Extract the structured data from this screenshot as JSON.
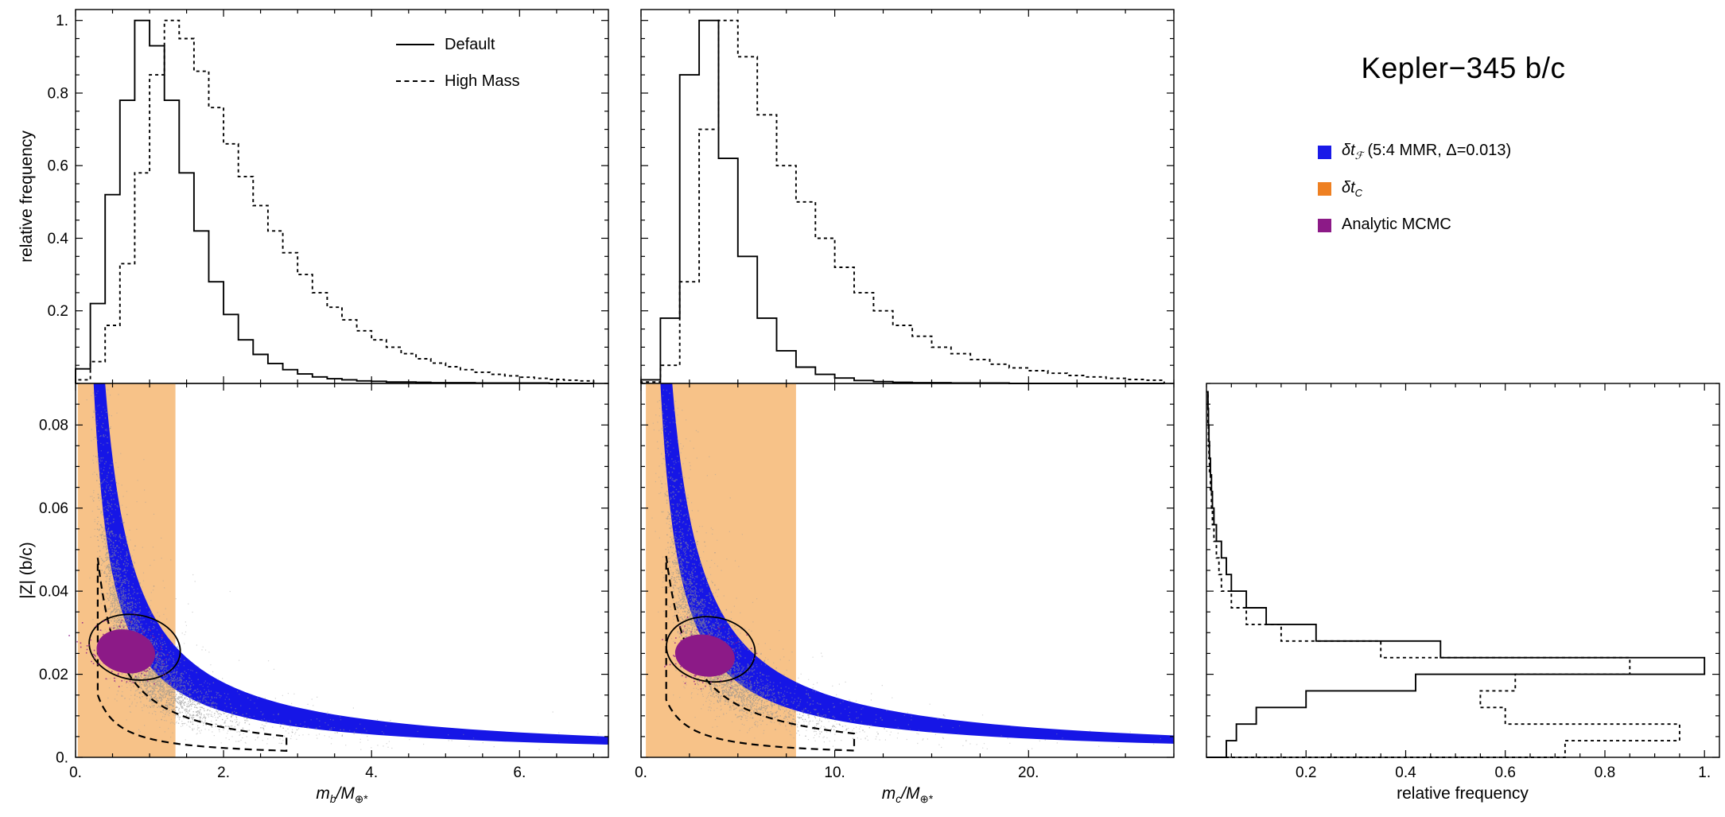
{
  "title": "Kepler−345 b/c",
  "colors": {
    "blue": "#1616E6",
    "orange_band": "#F7C288",
    "purple": "#8C1A87",
    "gray": "#999999"
  },
  "legend": {
    "items": [
      {
        "prefix": "δt",
        "sub": "ℱ",
        "rest": " (5:4 MMR, Δ=0.013)",
        "color": "#1A1AE8",
        "font_style": "italic"
      },
      {
        "prefix": "δt",
        "sub": "C",
        "rest": "",
        "color": "#EE8022",
        "font_style": "italic"
      },
      {
        "prefix": "Analytic MCMC",
        "sub": "",
        "rest": "",
        "color": "#8C1A87",
        "font_style": "normal"
      }
    ]
  },
  "hist_legend": {
    "solid": "Default",
    "dashed": "High Mass"
  },
  "axis_labels": {
    "relative_frequency": "relative frequency",
    "z_amplitude": "|Z| (b/c)",
    "mb": {
      "base": "m",
      "base_sub": "b",
      "denom": "/M",
      "denom_sub": "⊕*"
    },
    "mc": {
      "base": "m",
      "base_sub": "c",
      "denom": "/M",
      "denom_sub": "⊕*"
    }
  },
  "chart_data": [
    {
      "id": "mb_hist",
      "type": "histogram-step",
      "xlim": [
        0,
        7.2
      ],
      "ylim": [
        0,
        1.03
      ],
      "bin_start": 0,
      "bin_width": 0.2,
      "xticks": [
        0,
        2,
        4,
        6
      ],
      "xtick_labels": null,
      "yticks": [
        0.2,
        0.4,
        0.6,
        0.8,
        1.0
      ],
      "ytick_labels": [
        "0.2",
        "0.4",
        "0.6",
        "0.8",
        "1."
      ],
      "ylabel": "relative frequency",
      "series": [
        {
          "name": "Default",
          "style": "solid",
          "values": [
            0.04,
            0.22,
            0.52,
            0.78,
            1.0,
            0.93,
            0.78,
            0.58,
            0.42,
            0.28,
            0.19,
            0.12,
            0.08,
            0.055,
            0.038,
            0.026,
            0.018,
            0.013,
            0.01,
            0.007,
            0.006,
            0.004,
            0.004,
            0.003,
            0.002,
            0.002,
            0.002,
            0.001,
            0.001,
            0.001,
            0.001,
            0.001,
            0.0,
            0.0,
            0.0
          ]
        },
        {
          "name": "High Mass",
          "style": "dashed",
          "values": [
            0.01,
            0.06,
            0.16,
            0.33,
            0.58,
            0.85,
            1.0,
            0.95,
            0.86,
            0.76,
            0.66,
            0.57,
            0.49,
            0.42,
            0.36,
            0.3,
            0.25,
            0.21,
            0.175,
            0.145,
            0.12,
            0.1,
            0.082,
            0.068,
            0.056,
            0.046,
            0.038,
            0.031,
            0.025,
            0.021,
            0.017,
            0.014,
            0.011,
            0.009,
            0.007
          ]
        }
      ]
    },
    {
      "id": "mc_hist",
      "type": "histogram-step",
      "xlim": [
        0,
        27.5
      ],
      "ylim": [
        0,
        1.03
      ],
      "bin_start": 0,
      "bin_width": 1.0,
      "xticks": [
        0,
        10,
        20
      ],
      "xtick_labels": null,
      "yticks": [
        0.2,
        0.4,
        0.6,
        0.8,
        1.0
      ],
      "ytick_labels": null,
      "series": [
        {
          "name": "Default",
          "style": "solid",
          "values": [
            0.01,
            0.18,
            0.85,
            1.0,
            0.62,
            0.35,
            0.18,
            0.09,
            0.045,
            0.025,
            0.015,
            0.008,
            0.005,
            0.003,
            0.002,
            0.002,
            0.001,
            0.001,
            0.001,
            0.0,
            0.0,
            0.0,
            0.0,
            0.0,
            0.0,
            0.0,
            0.0
          ]
        },
        {
          "name": "High Mass",
          "style": "dashed",
          "values": [
            0.004,
            0.05,
            0.28,
            0.7,
            1.0,
            0.9,
            0.74,
            0.6,
            0.5,
            0.4,
            0.32,
            0.25,
            0.2,
            0.16,
            0.13,
            0.1,
            0.082,
            0.066,
            0.053,
            0.043,
            0.035,
            0.028,
            0.022,
            0.018,
            0.014,
            0.011,
            0.009
          ]
        }
      ]
    },
    {
      "id": "mb_z",
      "type": "scatter",
      "xlabel": "mb/M⊕*",
      "ylabel": "|Z| (b/c)",
      "xlim": [
        0,
        7.2
      ],
      "ylim": [
        0,
        0.09
      ],
      "xticks": [
        0,
        2,
        4,
        6
      ],
      "xtick_labels": [
        "0.",
        "2.",
        "4.",
        "6."
      ],
      "yticks": [
        0,
        0.02,
        0.04,
        0.06,
        0.08
      ],
      "ytick_labels": [
        "0.",
        "0.02",
        "0.04",
        "0.06",
        "0.08"
      ],
      "orange_band": {
        "x0": 0.03,
        "x1": 1.35
      },
      "blue_band": {
        "A_hi": 0.036,
        "A_lo": 0.022
      },
      "gray_cloud": {
        "x_mu": 0.85,
        "x_sigma": 0.42,
        "K": 0.021,
        "y_sigma": 0.2,
        "n_core": 2600,
        "n_halo": 1400
      },
      "solid_contour": {
        "cx": 0.8,
        "cy": 0.0265,
        "rx": 0.62,
        "ry": 0.0078,
        "tilt_deg": 10
      },
      "dashed_contour": {
        "C_hi": 0.0144,
        "C_lo": 0.0045,
        "x0": 0.3,
        "x1": 2.85
      },
      "purple": {
        "cx": 0.68,
        "cy": 0.0255,
        "rx": 0.4,
        "ry": 0.0052,
        "tilt_deg": 12
      }
    },
    {
      "id": "mc_z",
      "type": "scatter",
      "xlabel": "mc/M⊕*",
      "xlim": [
        0,
        27.5
      ],
      "ylim": [
        0,
        0.09
      ],
      "xticks": [
        0,
        10,
        20
      ],
      "xtick_labels": [
        "0.",
        "10.",
        "20."
      ],
      "yticks": [
        0,
        0.02,
        0.04,
        0.06,
        0.08
      ],
      "ytick_labels": null,
      "orange_band": {
        "x0": 0.25,
        "x1": 8.0
      },
      "blue_band": {
        "A_hi": 0.145,
        "A_lo": 0.09
      },
      "gray_cloud": {
        "x_mu": 3.6,
        "x_sigma": 0.42,
        "K": 0.088,
        "y_sigma": 0.2,
        "n_core": 2600,
        "n_halo": 1400
      },
      "solid_contour": {
        "cx": 3.6,
        "cy": 0.026,
        "rx": 2.3,
        "ry": 0.0078,
        "tilt_deg": 8
      },
      "dashed_contour": {
        "C_hi": 0.063,
        "C_lo": 0.018,
        "x0": 1.3,
        "x1": 11.0
      },
      "purple": {
        "cx": 3.3,
        "cy": 0.0245,
        "rx": 1.55,
        "ry": 0.005,
        "tilt_deg": 10
      }
    },
    {
      "id": "z_hist",
      "type": "histogram-step-horizontal",
      "xlabel": "relative frequency",
      "xlim": [
        0,
        1.03
      ],
      "ylim": [
        0,
        0.09
      ],
      "bin_start": 0,
      "bin_width": 0.004,
      "xticks": [
        0.2,
        0.4,
        0.6,
        0.8,
        1.0
      ],
      "xtick_labels": [
        "0.2",
        "0.4",
        "0.6",
        "0.8",
        "1."
      ],
      "yticks": [
        0,
        0.02,
        0.04,
        0.06,
        0.08
      ],
      "ytick_labels": null,
      "series": [
        {
          "name": "Default",
          "style": "solid",
          "values": [
            0.04,
            0.06,
            0.1,
            0.2,
            0.42,
            1.0,
            0.47,
            0.22,
            0.12,
            0.08,
            0.05,
            0.04,
            0.03,
            0.02,
            0.015,
            0.012,
            0.01,
            0.008,
            0.006,
            0.005,
            0.004,
            0.003
          ]
        },
        {
          "name": "High Mass",
          "style": "dashed",
          "values": [
            0.72,
            0.95,
            0.6,
            0.55,
            0.62,
            0.85,
            0.35,
            0.15,
            0.08,
            0.05,
            0.03,
            0.025,
            0.02,
            0.015,
            0.012,
            0.01,
            0.008,
            0.006,
            0.005,
            0.004,
            0.003,
            0.003
          ]
        }
      ]
    }
  ]
}
